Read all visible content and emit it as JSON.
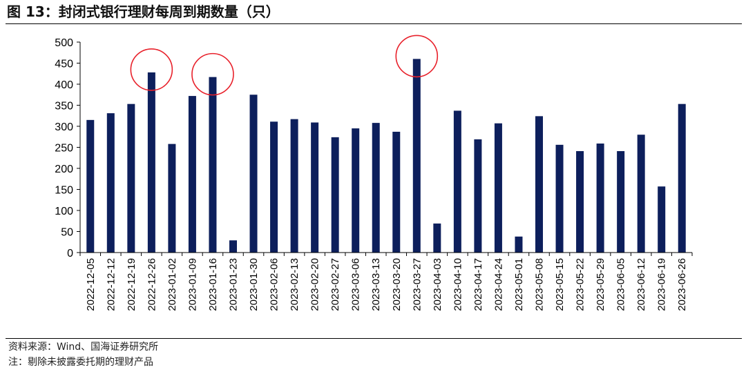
{
  "header": {
    "title": "图 13：封闭式银行理财每周到期数量（只）"
  },
  "footer": {
    "source": "资料来源：Wind、国海证券研究所",
    "note": "注：剔除未披露委托期的理财产品"
  },
  "colors": {
    "bar": "#0d1f5c",
    "highlight_circle": "#e8202a",
    "axis": "#000000"
  },
  "chart_data": {
    "type": "bar",
    "title": "",
    "xlabel": "",
    "ylabel": "",
    "ylim": [
      0,
      500
    ],
    "yticks": [
      0,
      50,
      100,
      150,
      200,
      250,
      300,
      350,
      400,
      450,
      500
    ],
    "grid": false,
    "categories": [
      "2022-12-05",
      "2022-12-12",
      "2022-12-19",
      "2022-12-26",
      "2023-01-02",
      "2023-01-09",
      "2023-01-16",
      "2023-01-23",
      "2023-01-30",
      "2023-02-06",
      "2023-02-13",
      "2023-02-20",
      "2023-02-27",
      "2023-03-06",
      "2023-03-13",
      "2023-03-20",
      "2023-03-27",
      "2023-04-03",
      "2023-04-10",
      "2023-04-17",
      "2023-04-24",
      "2023-05-01",
      "2023-05-08",
      "2023-05-15",
      "2023-05-22",
      "2023-05-29",
      "2023-06-05",
      "2023-06-12",
      "2023-06-19",
      "2023-06-26"
    ],
    "values": [
      315,
      331,
      353,
      428,
      258,
      372,
      417,
      29,
      375,
      311,
      317,
      309,
      274,
      295,
      308,
      287,
      460,
      69,
      337,
      269,
      307,
      38,
      324,
      256,
      241,
      259,
      241,
      280,
      157,
      353
    ],
    "highlighted_categories": [
      "2022-12-26",
      "2023-01-16",
      "2023-03-27"
    ]
  }
}
